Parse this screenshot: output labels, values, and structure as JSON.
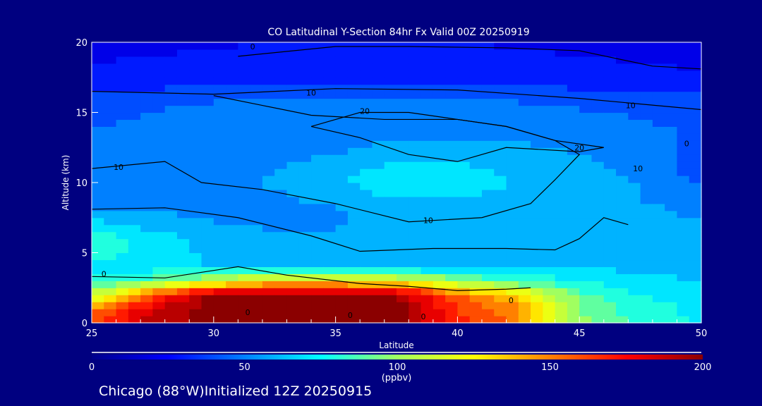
{
  "chart_data": {
    "type": "heatmap",
    "title": "CO Latitudinal Y-Section 84hr  Fx Valid 00Z 20250919",
    "xlabel": "Latitude",
    "ylabel": "Altitude (km)",
    "xlim": [
      25,
      50
    ],
    "ylim": [
      0,
      20
    ],
    "xticks": [
      "25",
      "30",
      "35",
      "40",
      "45",
      "50"
    ],
    "yticks": [
      "0",
      "5",
      "10",
      "15",
      "20"
    ],
    "x": [
      25,
      27.5,
      30,
      32.5,
      35,
      37.5,
      40,
      42.5,
      45,
      47.5,
      50
    ],
    "y": [
      0,
      1,
      2,
      3,
      4,
      5,
      6,
      7,
      8,
      9,
      10,
      11,
      12,
      13,
      14,
      15,
      16,
      17,
      18,
      19,
      20
    ],
    "values": [
      [
        160,
        190,
        200,
        200,
        200,
        200,
        170,
        150,
        100,
        80,
        75
      ],
      [
        150,
        185,
        200,
        200,
        200,
        200,
        165,
        150,
        95,
        80,
        72
      ],
      [
        110,
        160,
        200,
        200,
        200,
        195,
        155,
        130,
        90,
        75,
        70
      ],
      [
        80,
        90,
        110,
        130,
        130,
        120,
        100,
        85,
        75,
        68,
        65
      ],
      [
        72,
        70,
        65,
        65,
        62,
        62,
        62,
        60,
        65,
        62,
        60
      ],
      [
        80,
        72,
        62,
        58,
        56,
        56,
        56,
        56,
        58,
        60,
        58
      ],
      [
        82,
        70,
        60,
        56,
        55,
        55,
        55,
        55,
        58,
        60,
        56
      ],
      [
        70,
        62,
        56,
        54,
        55,
        56,
        56,
        56,
        58,
        58,
        55
      ],
      [
        55,
        54,
        52,
        52,
        54,
        58,
        60,
        60,
        58,
        56,
        54
      ],
      [
        52,
        52,
        52,
        54,
        58,
        66,
        65,
        62,
        58,
        55,
        52
      ],
      [
        50,
        50,
        52,
        56,
        62,
        75,
        70,
        65,
        60,
        55,
        45
      ],
      [
        48,
        50,
        52,
        55,
        60,
        70,
        68,
        62,
        58,
        52,
        40
      ],
      [
        46,
        48,
        50,
        52,
        55,
        60,
        60,
        58,
        55,
        50,
        40
      ],
      [
        46,
        48,
        50,
        52,
        52,
        55,
        55,
        55,
        52,
        48,
        42
      ],
      [
        45,
        46,
        50,
        50,
        50,
        52,
        52,
        52,
        50,
        46,
        44
      ],
      [
        42,
        45,
        48,
        48,
        48,
        48,
        48,
        48,
        46,
        44,
        42
      ],
      [
        38,
        42,
        44,
        45,
        45,
        45,
        45,
        44,
        42,
        40,
        38
      ],
      [
        30,
        32,
        34,
        34,
        34,
        34,
        34,
        34,
        32,
        30,
        28
      ],
      [
        26,
        28,
        30,
        30,
        30,
        30,
        30,
        28,
        28,
        26,
        25
      ],
      [
        24,
        25,
        26,
        27,
        27,
        27,
        27,
        26,
        25,
        24,
        24
      ],
      [
        22,
        23,
        24,
        25,
        25,
        25,
        25,
        24,
        24,
        23,
        22
      ]
    ],
    "contours": [
      {
        "level": "0",
        "points": [
          [
            25,
            3.3
          ],
          [
            28,
            3.2
          ],
          [
            31,
            4
          ],
          [
            33,
            3.4
          ],
          [
            36,
            2.8
          ],
          [
            38,
            2.6
          ],
          [
            40,
            2.3
          ],
          [
            42,
            2.4
          ],
          [
            43,
            2.5
          ]
        ]
      },
      {
        "level": "0",
        "points": [
          [
            31,
            19
          ],
          [
            35,
            19.7
          ],
          [
            38,
            19.7
          ],
          [
            42,
            19.6
          ],
          [
            45,
            19.4
          ],
          [
            48,
            18.3
          ],
          [
            50,
            18.1
          ]
        ]
      },
      {
        "level": "10",
        "points": [
          [
            25,
            16.5
          ],
          [
            30,
            16.3
          ],
          [
            35,
            16.7
          ],
          [
            40,
            16.6
          ],
          [
            45,
            16
          ],
          [
            50,
            15.2
          ]
        ]
      },
      {
        "level": "10",
        "points": [
          [
            25,
            11
          ],
          [
            28,
            11.5
          ],
          [
            29.5,
            10
          ],
          [
            32,
            9.5
          ],
          [
            35,
            8.5
          ],
          [
            38,
            7.2
          ],
          [
            41,
            7.5
          ],
          [
            43,
            8.5
          ],
          [
            44,
            10.2
          ],
          [
            45,
            12
          ],
          [
            44,
            13
          ],
          [
            42,
            14
          ],
          [
            40,
            14.5
          ],
          [
            37,
            14.5
          ],
          [
            34,
            14.8
          ],
          [
            32,
            15.5
          ],
          [
            30,
            16.2
          ]
        ]
      },
      {
        "level": "10",
        "points": [
          [
            25,
            8.1
          ],
          [
            28,
            8.2
          ],
          [
            31,
            7.5
          ],
          [
            34,
            6.2
          ],
          [
            36,
            5.1
          ],
          [
            39,
            5.3
          ],
          [
            42,
            5.3
          ],
          [
            44,
            5.2
          ],
          [
            45,
            6
          ],
          [
            46,
            7.5
          ],
          [
            47,
            7
          ]
        ]
      },
      {
        "level": "20",
        "points": [
          [
            34,
            14
          ],
          [
            36,
            15
          ],
          [
            38,
            15
          ],
          [
            40,
            14.5
          ],
          [
            42,
            14
          ],
          [
            44,
            13
          ],
          [
            46,
            12.5
          ],
          [
            45,
            12.2
          ],
          [
            42,
            12.5
          ],
          [
            40,
            11.5
          ],
          [
            38,
            12
          ],
          [
            36,
            13.2
          ],
          [
            34,
            14
          ]
        ]
      }
    ],
    "contour_labels": [
      {
        "text": "0",
        "x": 31.6,
        "y": 19.7
      },
      {
        "text": "10",
        "x": 34,
        "y": 16.4
      },
      {
        "text": "20",
        "x": 36.2,
        "y": 15.1
      },
      {
        "text": "20",
        "x": 45,
        "y": 12.5
      },
      {
        "text": "10",
        "x": 26.1,
        "y": 11.1
      },
      {
        "text": "10",
        "x": 38.8,
        "y": 7.3
      },
      {
        "text": "10",
        "x": 47.1,
        "y": 15.5
      },
      {
        "text": "0",
        "x": 49.4,
        "y": 12.8
      },
      {
        "text": "10",
        "x": 47.4,
        "y": 11
      },
      {
        "text": "0",
        "x": 25.5,
        "y": 3.5
      },
      {
        "text": "0",
        "x": 31.4,
        "y": 0.75
      },
      {
        "text": "0",
        "x": 35.6,
        "y": 0.55
      },
      {
        "text": "0",
        "x": 38.6,
        "y": 0.45
      },
      {
        "text": "0",
        "x": 42.2,
        "y": 1.6
      }
    ],
    "colorbar": {
      "range": [
        0,
        200
      ],
      "ticks": [
        "0",
        "50",
        "100",
        "150",
        "200"
      ],
      "unit": "(ppbv)",
      "colors": [
        "#00008b",
        "#0000ff",
        "#0080ff",
        "#00ffff",
        "#a0ff60",
        "#ffff00",
        "#ff8000",
        "#ff0000",
        "#8b0000"
      ]
    },
    "footer": "Chicago (88°W)Initialized 12Z 20250915"
  }
}
